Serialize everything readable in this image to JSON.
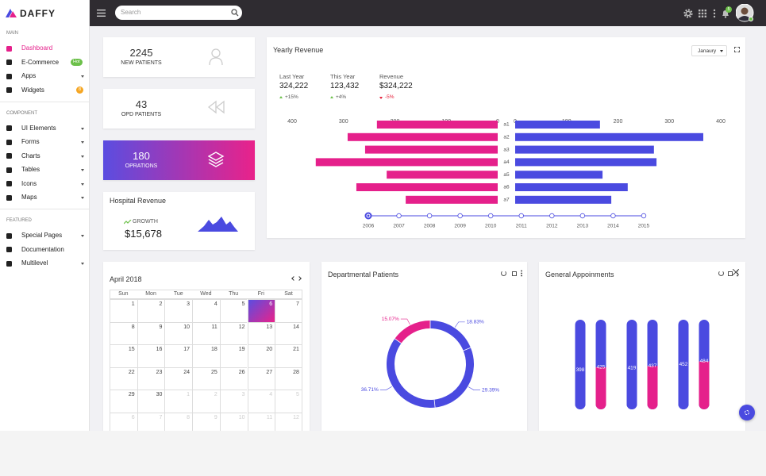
{
  "sidebar": {
    "logo": "DAFFY",
    "sections": [
      {
        "title": "MAIN",
        "items": [
          {
            "label": "Dashboard",
            "active": true
          },
          {
            "label": "E-Commerce",
            "badge": "Hot",
            "badge_color": "#6cc04a"
          },
          {
            "label": "Apps",
            "caret": true
          },
          {
            "label": "Widgets",
            "badge": 8,
            "badge_color": "#f5a623"
          }
        ]
      },
      {
        "title": "COMPONENT",
        "items": [
          {
            "label": "UI Elements",
            "caret": true
          },
          {
            "label": "Forms",
            "caret": true
          },
          {
            "label": "Charts",
            "caret": true
          },
          {
            "label": "Tables",
            "caret": true
          },
          {
            "label": "Icons",
            "caret": true
          },
          {
            "label": "Maps",
            "caret": true
          }
        ]
      },
      {
        "title": "FEATURED",
        "items": [
          {
            "label": "Special Pages",
            "caret": true
          },
          {
            "label": "Documentation"
          },
          {
            "label": "Multilevel",
            "caret": true
          }
        ]
      }
    ]
  },
  "topbar": {
    "search_placeholder": "Search",
    "notifications": 5
  },
  "stats": [
    {
      "value": 2245,
      "label": "NEW PATIENTS"
    },
    {
      "value": 43,
      "label": "OPD PATIENTS"
    },
    {
      "value": 180,
      "label": "OPRATIONS",
      "highlight": true
    }
  ],
  "hospital_revenue": {
    "title": "Hospital Revenue",
    "growth_label": "GROWTH",
    "amount": "$15,678"
  },
  "yearly_summary": {
    "dropdown": "Janaury",
    "items": [
      {
        "label": "Last Year",
        "value": "324,222",
        "change": "+15%",
        "trend": "up"
      },
      {
        "label": "This Year",
        "value": "123,432",
        "change": "+4%",
        "trend": "up"
      },
      {
        "label": "Revenue",
        "value": "$324,222",
        "change": "-5%",
        "trend": "down"
      }
    ]
  },
  "calendar": {
    "title": "April 2018",
    "weekdays": [
      "Sun",
      "Mon",
      "Tue",
      "Wed",
      "Thu",
      "Fri",
      "Sat"
    ],
    "weeks": [
      [
        1,
        2,
        3,
        4,
        5,
        6,
        7
      ],
      [
        8,
        9,
        10,
        11,
        12,
        13,
        14
      ],
      [
        15,
        16,
        17,
        18,
        19,
        20,
        21
      ],
      [
        22,
        23,
        24,
        25,
        26,
        27,
        28
      ],
      [
        29,
        30,
        1,
        2,
        3,
        4,
        5
      ],
      [
        6,
        7,
        8,
        9,
        10,
        11,
        12
      ]
    ],
    "selected": 6
  },
  "chart_data": [
    {
      "type": "bar",
      "orientation": "butterfly",
      "title": "Yearly Revenue",
      "categories": [
        "a1",
        "a2",
        "a3",
        "a4",
        "a5",
        "a6",
        "a7"
      ],
      "xlim": [
        0,
        400
      ],
      "xticks_left": [
        400,
        300,
        200,
        100,
        0
      ],
      "xticks_right": [
        0,
        100,
        200,
        300,
        400
      ],
      "series": [
        {
          "color": "#e5208b",
          "side": "left",
          "values": [
            235,
            292,
            258,
            354,
            216,
            275,
            179
          ]
        },
        {
          "color": "#4a4ae0",
          "side": "right",
          "values": [
            165,
            366,
            270,
            275,
            170,
            219,
            187
          ]
        }
      ],
      "timeline": [
        2006,
        2007,
        2008,
        2009,
        2010,
        2011,
        2012,
        2013,
        2014,
        2015
      ],
      "timeline_active": 2006
    },
    {
      "type": "pie",
      "donut": true,
      "title": "Departmental Patients",
      "values": [
        18.83,
        29.39,
        36.71,
        15.07
      ],
      "value_labels": [
        "18.83%",
        "29.39%",
        "36.71%",
        "15.07%"
      ],
      "colors": [
        "#4a4ae0",
        "#4a4ae0",
        "#4a4ae0",
        "#e5208b"
      ]
    },
    {
      "type": "bar",
      "style": "pill",
      "title": "General Appoinments",
      "series": [
        {
          "color": "#4a4ae0",
          "values": [
            398,
            419,
            452
          ]
        },
        {
          "color": "#e5208b",
          "values": [
            425,
            437,
            484
          ]
        }
      ]
    }
  ]
}
